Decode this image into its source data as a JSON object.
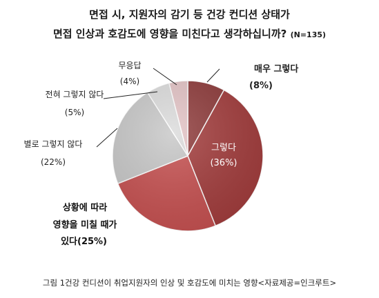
{
  "title_line1": "면접 시, 지원자의 감기 등 건강 컨디션 상태가",
  "title_line2": "면접 인상과 호감도에 영향을 미친다고 생각하십니까?",
  "title_n": "(N=135)",
  "caption": "그림 1건강 컨디션이 취업지원자의 인상 및 호감도에 미치는 영향<자료제공=인크루트>",
  "chart_data": {
    "type": "pie",
    "title": "면접 시, 지원자의 감기 등 건강 컨디션 상태가 면접 인상과 호감도에 영향을 미친다고 생각하십니까? (N=135)",
    "slices": [
      {
        "name": "매우 그렇다",
        "value": 8,
        "label": "(8%)",
        "color": "#8e3a3a"
      },
      {
        "name": "그렇다",
        "value": 36,
        "label": "(36%)",
        "color": "#a33c3c"
      },
      {
        "name": "상황에 따라 영향을 미칠 때가 있다",
        "value": 25,
        "label": "(25%)",
        "color": "#c75050"
      },
      {
        "name": "별로 그렇지 않다",
        "value": 22,
        "label": "(22%)",
        "color": "#c8c8c8"
      },
      {
        "name": "전혀 그렇지 않다",
        "value": 5,
        "label": "(5%)",
        "color": "#dcdcdc"
      },
      {
        "name": "무응답",
        "value": 4,
        "label": "(4%)",
        "color": "#e3c3c5"
      }
    ],
    "legend": "none"
  }
}
